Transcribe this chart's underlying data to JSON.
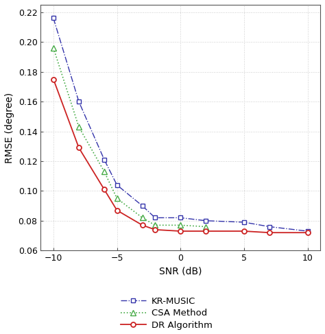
{
  "snr_kr": [
    -10,
    -8,
    -6,
    -5,
    -3,
    -2,
    0,
    2,
    5,
    7,
    10
  ],
  "kr_music": [
    0.216,
    0.16,
    0.121,
    0.104,
    0.09,
    0.082,
    0.082,
    0.08,
    0.079,
    0.076,
    0.073
  ],
  "snr_csa": [
    -10,
    -8,
    -6,
    -5,
    -3,
    -2,
    0,
    2
  ],
  "csa_method": [
    0.196,
    0.143,
    0.113,
    0.095,
    0.082,
    0.077,
    0.077,
    0.076
  ],
  "snr_dr": [
    -10,
    -8,
    -6,
    -5,
    -3,
    -2,
    0,
    2,
    5,
    7,
    10
  ],
  "dr_algo": [
    0.175,
    0.129,
    0.101,
    0.087,
    0.077,
    0.074,
    0.073,
    0.073,
    0.073,
    0.072,
    0.072
  ],
  "xlabel": "SNR (dB)",
  "ylabel": "RMSE (degree)",
  "xlim": [
    -11,
    11
  ],
  "ylim": [
    0.06,
    0.225
  ],
  "yticks": [
    0.06,
    0.08,
    0.1,
    0.12,
    0.14,
    0.16,
    0.18,
    0.2,
    0.22
  ],
  "xticks": [
    -10,
    -5,
    0,
    5,
    10
  ],
  "kr_music_color": "#3333aa",
  "csa_color": "#44aa44",
  "dr_color": "#cc2222",
  "legend_labels": [
    "KR-MUSIC",
    "CSA Method",
    "DR Algorithm"
  ],
  "background_color": "#ffffff",
  "grid_color": "#cccccc"
}
